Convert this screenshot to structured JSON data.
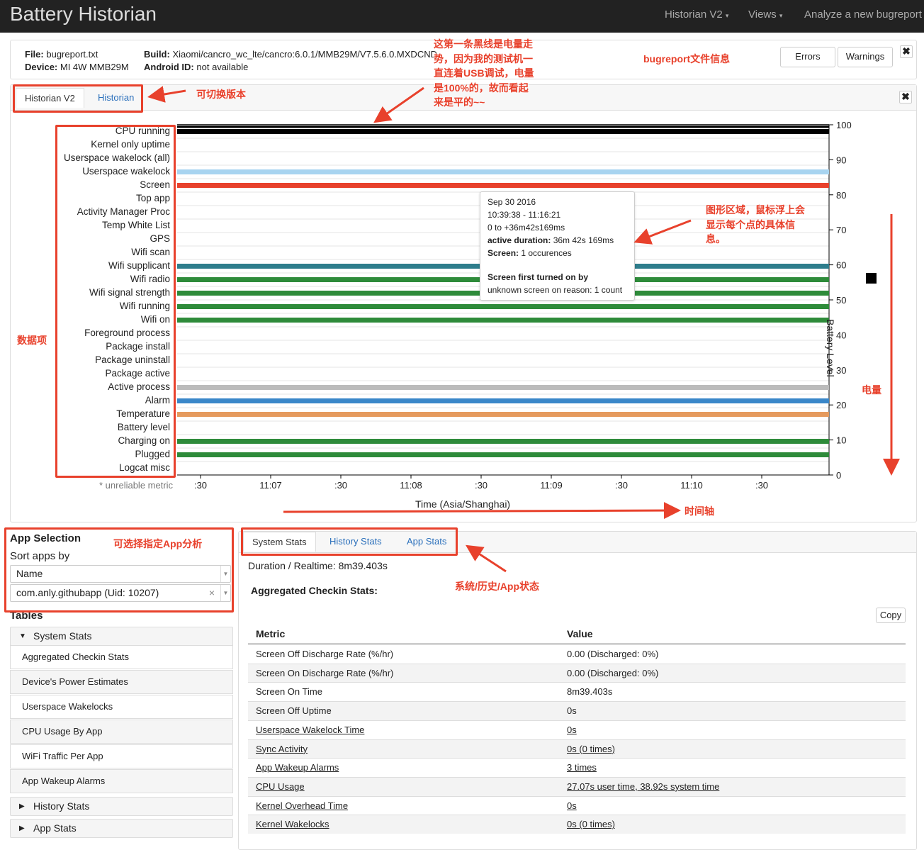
{
  "navbar": {
    "brand": "Battery Historian",
    "links": [
      "Historian V2",
      "Views",
      "Analyze a new bugreport"
    ]
  },
  "info": {
    "file_label": "File:",
    "file": "bugreport.txt",
    "device_label": "Device:",
    "device": "MI 4W MMB29M",
    "build_label": "Build:",
    "build": "Xiaomi/cancro_wc_lte/cancro:6.0.1/MMB29M/V7.5.6.0.MXDCND",
    "android_label": "Android ID:",
    "android_id": "not available",
    "errors_button": "Errors",
    "warnings_button": "Warnings",
    "close": "✖"
  },
  "version_tabs": [
    "Historian V2",
    "Historian"
  ],
  "chart_data": {
    "type": "timeline",
    "rows": [
      "CPU running",
      "Kernel only uptime",
      "Userspace wakelock (all)",
      "Userspace wakelock",
      "Screen",
      "Top app",
      "Activity Manager Proc",
      "Temp White List",
      "GPS",
      "Wifi scan",
      "Wifi supplicant",
      "Wifi radio",
      "Wifi signal strength",
      "Wifi running",
      "Wifi on",
      "Foreground process",
      "Package install",
      "Package uninstall",
      "Package active",
      "Active process",
      "Alarm",
      "Temperature",
      "Battery level",
      "Charging on",
      "Plugged",
      "Logcat misc"
    ],
    "active_bars": [
      {
        "row": "CPU running",
        "color": "#000000"
      },
      {
        "row": "Userspace wakelock",
        "color": "#a8d4f0"
      },
      {
        "row": "Screen",
        "color": "#e8412c"
      },
      {
        "row": "Wifi supplicant",
        "color": "#2e7d8c"
      },
      {
        "row": "Wifi radio",
        "color": "#2e8b3a"
      },
      {
        "row": "Wifi signal strength",
        "color": "#2e8b3a"
      },
      {
        "row": "Wifi running",
        "color": "#2e8b3a"
      },
      {
        "row": "Wifi on",
        "color": "#2e8b3a"
      },
      {
        "row": "Active process",
        "color": "#bbbbbb"
      },
      {
        "row": "Alarm",
        "color": "#3a87c9"
      },
      {
        "row": "Temperature",
        "color": "#e59a5e"
      },
      {
        "row": "Charging on",
        "color": "#2e8b3a"
      },
      {
        "row": "Plugged",
        "color": "#2e8b3a"
      }
    ],
    "battery_level": 100,
    "y_ticks": [
      "100",
      "90",
      "80",
      "70",
      "60",
      "50",
      "40",
      "30",
      "20",
      "10",
      "0"
    ],
    "x_ticks": [
      ":30",
      "11:07",
      ":30",
      "11:08",
      ":30",
      "11:09",
      ":30",
      "11:10",
      ":30"
    ],
    "xlabel": "Time (Asia/Shanghai)",
    "ylabel": "Battery Level",
    "footnote": "* unreliable metric"
  },
  "tooltip": {
    "date": "Sep 30 2016",
    "range": "10:39:38 - 11:16:21",
    "offset": "0 to +36m42s169ms",
    "active_label": "active duration:",
    "active_value": "36m 42s 169ms",
    "screen_label": "Screen:",
    "screen_value": "1 occurences",
    "first_on": "Screen first turned on by",
    "reason": "unknown screen on reason: 1 count"
  },
  "annotations": {
    "battery_line": [
      "这第一条黑线是电量走",
      "势，因为我的测试机一",
      "直连着USB调试，电量",
      "是100%的，故而看起",
      "来是平的~~"
    ],
    "bugreport_info": "bugreport文件信息",
    "switch_version": "可切换版本",
    "graph_area": [
      "图形区域，鼠标浮上会",
      "显示每个点的具体信",
      "息。"
    ],
    "data_items": "数据项",
    "battery": "电量",
    "time_axis": "时间轴",
    "app_select": "可选择指定App分析",
    "stats_tabs": "系统/历史/App状态"
  },
  "app_selection": {
    "title": "App Selection",
    "sort_label": "Sort apps by",
    "sort_value": "Name",
    "app_value": "com.anly.githubapp (Uid: 10207)",
    "clear": "×"
  },
  "tables": {
    "title": "Tables",
    "system_stats": "System Stats",
    "items": [
      "Aggregated Checkin Stats",
      "Device's Power Estimates",
      "Userspace Wakelocks",
      "CPU Usage By App",
      "WiFi Traffic Per App",
      "App Wakeup Alarms"
    ],
    "history_stats": "History Stats",
    "app_stats": "App Stats"
  },
  "stats_tabs": [
    "System Stats",
    "History Stats",
    "App Stats"
  ],
  "stats": {
    "duration": "Duration / Realtime: 8m39.403s",
    "title": "Aggregated Checkin Stats:",
    "copy": "Copy",
    "metric_header": "Metric",
    "value_header": "Value",
    "rows": [
      {
        "metric": "Screen Off Discharge Rate (%/hr)",
        "value": "0.00 (Discharged: 0%)",
        "link": false
      },
      {
        "metric": "Screen On Discharge Rate (%/hr)",
        "value": "0.00 (Discharged: 0%)",
        "link": false
      },
      {
        "metric": "Screen On Time",
        "value": "8m39.403s",
        "link": false
      },
      {
        "metric": "Screen Off Uptime",
        "value": "0s",
        "link": false
      },
      {
        "metric": "Userspace Wakelock Time",
        "value": "0s",
        "link": true
      },
      {
        "metric": "Sync Activity",
        "value": "0s (0 times)",
        "link": true
      },
      {
        "metric": "App Wakeup Alarms",
        "value": "3 times",
        "link": true
      },
      {
        "metric": "CPU Usage",
        "value": "27.07s user time, 38.92s system time",
        "link": true
      },
      {
        "metric": "Kernel Overhead Time",
        "value": "0s",
        "link": true
      },
      {
        "metric": "Kernel Wakelocks",
        "value": "0s (0 times)",
        "link": true
      }
    ]
  }
}
